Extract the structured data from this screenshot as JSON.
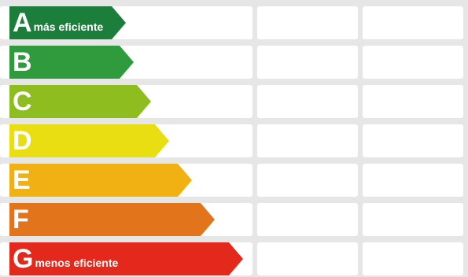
{
  "rating_scale": [
    {
      "letter": "A",
      "note": "más eficiente",
      "color": "#1b7e3a"
    },
    {
      "letter": "B",
      "note": "",
      "color": "#2f9b3c"
    },
    {
      "letter": "C",
      "note": "",
      "color": "#8dbd1f"
    },
    {
      "letter": "D",
      "note": "",
      "color": "#e8de12"
    },
    {
      "letter": "E",
      "note": "",
      "color": "#f2b112"
    },
    {
      "letter": "F",
      "note": "",
      "color": "#e2741c"
    },
    {
      "letter": "G",
      "note": "menos eficiente",
      "color": "#e3291c"
    }
  ]
}
